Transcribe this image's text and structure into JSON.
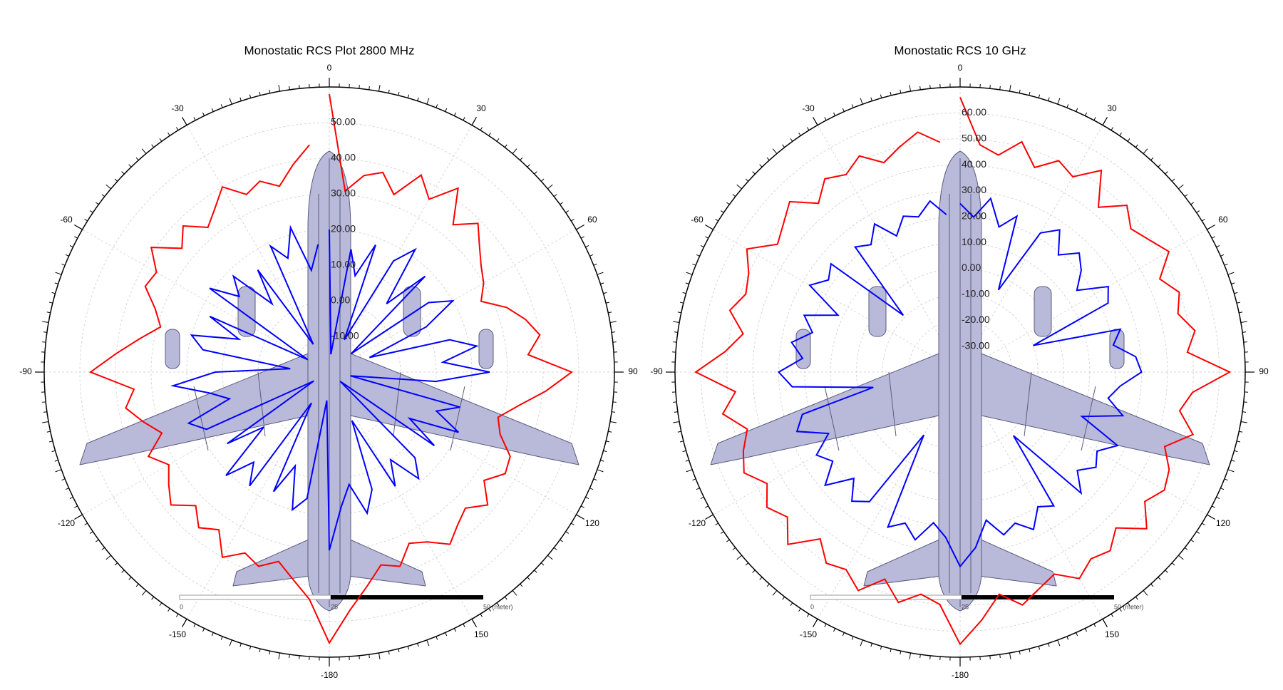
{
  "chart_data": [
    {
      "type": "polar",
      "title": "Monostatic RCS Plot 2800 MHz",
      "x": [
        0,
        5,
        10,
        15,
        20,
        25,
        30,
        35,
        40,
        45,
        50,
        55,
        60,
        65,
        70,
        75,
        80,
        85,
        90,
        95,
        100,
        105,
        110,
        115,
        120,
        125,
        130,
        135,
        140,
        145,
        150,
        155,
        160,
        165,
        170,
        175,
        180,
        185,
        190,
        195,
        200,
        205,
        210,
        215,
        220,
        225,
        230,
        235,
        240,
        245,
        250,
        255,
        260,
        265,
        270,
        275,
        280,
        285,
        290,
        295,
        300,
        305,
        310,
        315,
        320,
        325,
        330,
        335,
        340,
        345,
        350,
        355
      ],
      "series": [
        {
          "color": "#ff0000",
          "values": [
            58,
            31,
            36,
            38,
            33,
            41,
            36,
            43,
            34,
            39,
            35,
            32,
            30,
            27,
            33,
            37,
            40,
            36,
            48,
            41,
            34,
            29,
            31,
            36,
            37,
            33,
            38,
            34,
            36,
            39,
            35,
            33,
            38,
            36,
            41,
            47,
            56,
            44,
            39,
            35,
            38,
            36,
            40,
            34,
            37,
            33,
            38,
            35,
            32,
            36,
            30,
            34,
            38,
            35,
            47,
            40,
            34,
            29,
            32,
            37,
            36,
            41,
            34,
            38,
            33,
            36,
            40,
            35,
            37,
            34,
            39,
            44
          ]
        },
        {
          "color": "#0000ff",
          "values": [
            20,
            -15,
            15,
            8,
            18,
            -10,
            16,
            22,
            5,
            18,
            -12,
            14,
            20,
            10,
            -8,
            15,
            22,
            12,
            25,
            10,
            -14,
            18,
            12,
            20,
            6,
            16,
            -16,
            14,
            19,
            10,
            17,
            -5,
            15,
            21,
            12,
            18,
            30,
            -12,
            16,
            20,
            8,
            17,
            -10,
            19,
            13,
            21,
            4,
            15,
            -15,
            18,
            22,
            9,
            14,
            24,
            12,
            -9,
            16,
            20,
            7,
            17,
            -13,
            21,
            13,
            18,
            5,
            15,
            -11,
            19,
            14,
            22,
            9,
            16
          ]
        }
      ],
      "ylim": [
        -20,
        60
      ],
      "yticks": [
        {
          "value": 50,
          "label": "50.00"
        },
        {
          "value": 40,
          "label": "40.00"
        },
        {
          "value": 30,
          "label": "30.00"
        },
        {
          "value": 20,
          "label": "20.00"
        },
        {
          "value": 10,
          "label": "10.00"
        },
        {
          "value": 0,
          "label": "0.00"
        },
        {
          "value": -10,
          "label": "-10.00"
        }
      ],
      "xticks": [
        0,
        30,
        60,
        90,
        120,
        150,
        -180,
        -150,
        -120,
        -90,
        -60,
        -30
      ],
      "scale_bar": [
        "0",
        "25",
        "50 (meter)"
      ]
    },
    {
      "type": "polar",
      "title": "Monostatic RCS 10 GHz",
      "x": [
        0,
        5,
        10,
        15,
        20,
        25,
        30,
        35,
        40,
        45,
        50,
        55,
        60,
        65,
        70,
        75,
        80,
        85,
        90,
        95,
        100,
        105,
        110,
        115,
        120,
        125,
        130,
        135,
        140,
        145,
        150,
        155,
        160,
        165,
        170,
        175,
        180,
        185,
        190,
        195,
        200,
        205,
        210,
        215,
        220,
        225,
        230,
        235,
        240,
        245,
        250,
        255,
        260,
        265,
        270,
        275,
        280,
        285,
        290,
        295,
        300,
        305,
        310,
        315,
        320,
        325,
        330,
        335,
        340,
        345,
        350,
        355
      ],
      "series": [
        {
          "color": "#ff0000",
          "values": [
            66,
            48,
            45,
            52,
            44,
            50,
            47,
            55,
            43,
            51,
            46,
            49,
            53,
            45,
            50,
            47,
            52,
            48,
            64,
            50,
            46,
            53,
            44,
            49,
            51,
            47,
            54,
            45,
            50,
            48,
            52,
            46,
            49,
            53,
            47,
            56,
            65,
            50,
            47,
            52,
            45,
            53,
            48,
            50,
            44,
            54,
            47,
            51,
            46,
            52,
            49,
            45,
            53,
            47,
            62,
            51,
            45,
            52,
            48,
            50,
            55,
            46,
            49,
            53,
            45,
            51,
            48,
            52,
            46,
            50,
            54,
            49
          ]
        },
        {
          "color": "#0000ff",
          "values": [
            25,
            20,
            28,
            18,
            24,
            -5,
            22,
            27,
            19,
            25,
            21,
            15,
            26,
            23,
            -10,
            24,
            20,
            28,
            30,
            22,
            18,
            25,
            10,
            27,
            21,
            24,
            19,
            26,
            -8,
            23,
            20,
            27,
            22,
            25,
            18,
            28,
            35,
            24,
            19,
            27,
            22,
            26,
            -12,
            21,
            25,
            18,
            28,
            20,
            24,
            16,
            27,
            23,
            -6,
            25,
            30,
            21,
            26,
            19,
            24,
            12,
            27,
            22,
            25,
            -9,
            23,
            20,
            26,
            18,
            24,
            22,
            27,
            21
          ]
        }
      ],
      "ylim": [
        -40,
        70
      ],
      "yticks": [
        {
          "value": 60,
          "label": "60.00"
        },
        {
          "value": 50,
          "label": "50.00"
        },
        {
          "value": 40,
          "label": "40.00"
        },
        {
          "value": 30,
          "label": "30.00"
        },
        {
          "value": 20,
          "label": "20.00"
        },
        {
          "value": 10,
          "label": "10.00"
        },
        {
          "value": 0,
          "label": "0.00"
        },
        {
          "value": -10,
          "label": "-10.00"
        },
        {
          "value": -20,
          "label": "-20.00"
        },
        {
          "value": -30,
          "label": "-30.00"
        }
      ],
      "xticks": [
        0,
        30,
        60,
        90,
        120,
        150,
        -180,
        -150,
        -120,
        -90,
        -60,
        -30
      ],
      "scale_bar": [
        "0",
        "25",
        "50 (meter)"
      ]
    }
  ]
}
